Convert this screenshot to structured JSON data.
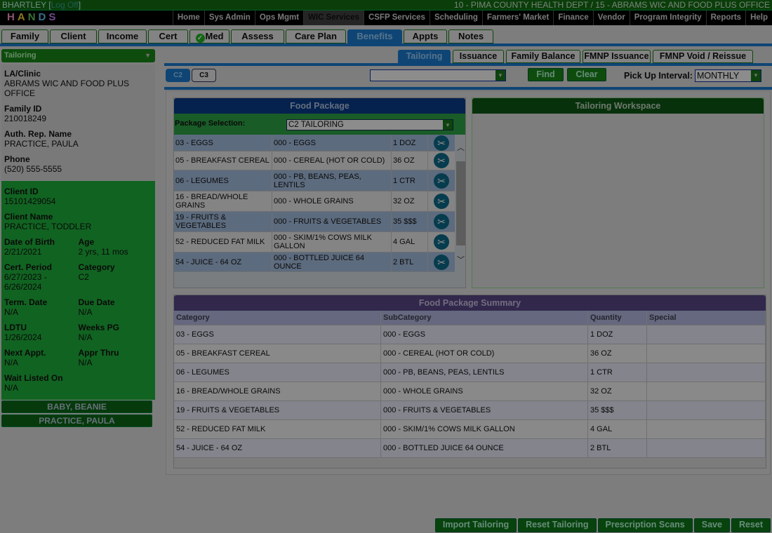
{
  "header": {
    "user": "BHARTLEY",
    "logoff": "Log Off",
    "office": "10 - PIMA COUNTY HEALTH DEPT / 15 - ABRAMS WIC AND FOOD PLUS OFFICE",
    "logo": "HANDS"
  },
  "nav": [
    "Home",
    "Sys Admin",
    "Ops Mgmt",
    "WIC Services",
    "CSFP Services",
    "Scheduling",
    "Farmers' Market",
    "Finance",
    "Vendor",
    "Program Integrity",
    "Reports",
    "Help"
  ],
  "nav_active": "WIC Services",
  "module_tabs": [
    "Family",
    "Client",
    "Income",
    "Cert",
    "Med",
    "Assess",
    "Care Plan",
    "Benefits",
    "Appts",
    "Notes"
  ],
  "module_active": "Benefits",
  "left": {
    "selector": "Tailoring",
    "la_clinic_label": "LA/Clinic",
    "la_clinic": "ABRAMS WIC AND FOOD PLUS OFFICE",
    "family_id_label": "Family ID",
    "family_id": "210018249",
    "auth_rep_label": "Auth. Rep. Name",
    "auth_rep": "PRACTICE, PAULA",
    "phone_label": "Phone",
    "phone": "(520) 555-5555",
    "client_id_label": "Client ID",
    "client_id": "15101429054",
    "client_name_label": "Client Name",
    "client_name": "PRACTICE, TODDLER",
    "dob_label": "Date of Birth",
    "dob": "2/21/2021",
    "age_label": "Age",
    "age": "2 yrs, 11 mos",
    "cert_label": "Cert. Period",
    "cert": "6/27/2023 - 6/26/2024",
    "category_label": "Category",
    "category": "C2",
    "term_label": "Term. Date",
    "term": "N/A",
    "due_label": "Due Date",
    "due": "N/A",
    "ldtu_label": "LDTU",
    "ldtu": "1/26/2024",
    "weeks_label": "Weeks PG",
    "weeks": "N/A",
    "next_label": "Next Appt.",
    "next": "N/A",
    "appr_label": "Appr Thru",
    "appr": "N/A",
    "wait_label": "Wait Listed On",
    "wait": "N/A",
    "family_members": [
      "BABY, BEANIE",
      "PRACTICE, PAULA"
    ]
  },
  "sub_tabs": [
    "Tailoring",
    "Issuance",
    "Family Balance",
    "FMNP Issuance",
    "FMNP Void / Reissue"
  ],
  "sub_active": "Tailoring",
  "category_buttons": [
    "C2",
    "C3"
  ],
  "search_select": "",
  "find": "Find",
  "clear": "Clear",
  "pickup_label": "Pick Up Interval:",
  "pickup_value": "MONTHLY",
  "food_package": {
    "title": "Food Package",
    "selection_label": "Package Selection:",
    "selection": "C2 TAILORING",
    "rows": [
      [
        "03 - EGGS",
        "000 - EGGS",
        "1 DOZ"
      ],
      [
        "05 - BREAKFAST CEREAL",
        "000 - CEREAL (HOT OR COLD)",
        "36 OZ"
      ],
      [
        "06 - LEGUMES",
        "000 - PB, BEANS, PEAS, LENTILS",
        "1 CTR"
      ],
      [
        "16 - BREAD/WHOLE GRAINS",
        "000 - WHOLE GRAINS",
        "32 OZ"
      ],
      [
        "19 - FRUITS & VEGETABLES",
        "000 - FRUITS & VEGETABLES",
        "35 $$$"
      ],
      [
        "52 - REDUCED FAT MILK",
        "000 - SKIM/1% COWS MILK GALLON",
        "4 GAL"
      ],
      [
        "54 - JUICE - 64 OZ",
        "000 - BOTTLED JUICE 64 OUNCE",
        "2 BTL"
      ]
    ]
  },
  "workspace": {
    "title": "Tailoring Workspace"
  },
  "summary": {
    "title": "Food Package Summary",
    "columns": [
      "Category",
      "SubCategory",
      "Quantity",
      "Special"
    ],
    "rows": [
      [
        "03 - EGGS",
        "000 - EGGS",
        "1 DOZ",
        ""
      ],
      [
        "05 - BREAKFAST CEREAL",
        "000 - CEREAL (HOT OR COLD)",
        "36 OZ",
        ""
      ],
      [
        "06 - LEGUMES",
        "000 - PB, BEANS, PEAS, LENTILS",
        "1 CTR",
        ""
      ],
      [
        "16 - BREAD/WHOLE GRAINS",
        "000 - WHOLE GRAINS",
        "32 OZ",
        ""
      ],
      [
        "19 - FRUITS & VEGETABLES",
        "000 - FRUITS & VEGETABLES",
        "35 $$$",
        ""
      ],
      [
        "52 - REDUCED FAT MILK",
        "000 - SKIM/1% COWS MILK GALLON",
        "4 GAL",
        ""
      ],
      [
        "54 - JUICE - 64 OZ",
        "000 - BOTTLED JUICE 64 OUNCE",
        "2 BTL",
        ""
      ]
    ]
  },
  "bottom_buttons": [
    "Import Tailoring",
    "Reset Tailoring",
    "Prescription Scans",
    "Save",
    "Reset"
  ],
  "colors": {
    "brand_green": "#1a8a1a",
    "accent_blue": "#1c7fd6",
    "overlay": "rgba(0,0,0,0.45)"
  }
}
